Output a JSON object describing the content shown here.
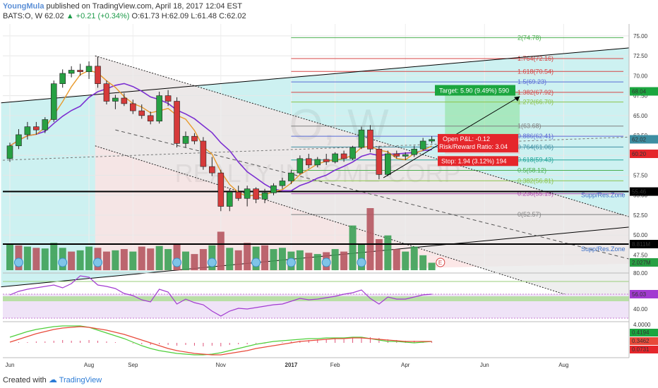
{
  "header": {
    "author": "YoungMula",
    "published": "published on TradingView.com, April 18, 2017 12:04 EST",
    "symbol": "BATS:O, W",
    "last": "62.02",
    "change": "+0.21 (+0.34%)",
    "ohlc": "O:61.73 H:62.09 L:61.48 C:62.02"
  },
  "footer": {
    "created_with": "Created with",
    "brand": "TradingView"
  },
  "watermark": {
    "big": "O, W",
    "sub": "REALTY INCOME CORP"
  },
  "colors": {
    "up": "#27a043",
    "down": "#d63a3a",
    "up_vol": "#3da157",
    "down_vol": "#b65660",
    "channel_fill": "#c8f0f0",
    "fib_fill": "#e8e8e8",
    "target": "#1ba63f",
    "stop": "#e5262b"
  },
  "chart_data": {
    "type": "candlestick",
    "x_ticks": [
      "Jun",
      "Aug",
      "Sep",
      "Nov",
      "2017",
      "Feb",
      "Apr",
      "Jun",
      "Aug"
    ],
    "y_ticks": [
      "75.00",
      "72.50",
      "70.00",
      "67.50",
      "65.00",
      "62.50",
      "60.00",
      "57.50",
      "55.00",
      "52.50",
      "50.00",
      "47.50"
    ],
    "ylim": [
      45.5,
      76.5
    ],
    "price_labels": [
      {
        "value": 68.04,
        "text": "68.04",
        "color": "#1ba63f"
      },
      {
        "value": 62.02,
        "text": "62.02",
        "color": "#3d8ea2"
      },
      {
        "value": 60.2,
        "text": "60.20",
        "color": "#e5262b"
      },
      {
        "value": 55.46,
        "text": "55.46",
        "color": "#000000"
      }
    ],
    "candles": [
      [
        59.6,
        61.6,
        59.2,
        61.2
      ],
      [
        61.2,
        63.3,
        60.8,
        62.6
      ],
      [
        62.6,
        64.2,
        62.0,
        63.6
      ],
      [
        63.6,
        64.2,
        62.6,
        63.2
      ],
      [
        63.2,
        64.8,
        62.8,
        64.5
      ],
      [
        64.5,
        69.4,
        64.2,
        69.0
      ],
      [
        69.0,
        70.8,
        68.5,
        70.3
      ],
      [
        70.3,
        71.2,
        69.8,
        70.7
      ],
      [
        70.7,
        71.5,
        70.0,
        70.5
      ],
      [
        70.5,
        71.8,
        69.6,
        71.2
      ],
      [
        71.2,
        72.4,
        68.5,
        69.0
      ],
      [
        69.0,
        69.4,
        66.4,
        66.8
      ],
      [
        66.8,
        67.6,
        65.8,
        67.2
      ],
      [
        67.2,
        67.8,
        66.2,
        66.5
      ],
      [
        66.5,
        67.0,
        65.2,
        65.6
      ],
      [
        65.6,
        66.4,
        64.6,
        65.0
      ],
      [
        65.0,
        65.5,
        63.9,
        64.3
      ],
      [
        64.3,
        68.0,
        64.0,
        67.5
      ],
      [
        67.5,
        68.2,
        66.2,
        66.8
      ],
      [
        66.8,
        67.3,
        61.0,
        61.5
      ],
      [
        61.5,
        63.0,
        61.0,
        62.4
      ],
      [
        62.4,
        62.8,
        61.4,
        61.8
      ],
      [
        61.8,
        62.3,
        58.2,
        58.6
      ],
      [
        58.6,
        59.8,
        57.4,
        57.8
      ],
      [
        57.8,
        58.2,
        53.0,
        53.6
      ],
      [
        53.6,
        55.8,
        53.0,
        55.4
      ],
      [
        55.4,
        56.2,
        54.3,
        54.6
      ],
      [
        54.6,
        56.2,
        53.6,
        55.8
      ],
      [
        55.8,
        56.0,
        54.0,
        54.5
      ],
      [
        54.5,
        55.8,
        54.0,
        55.3
      ],
      [
        55.3,
        56.5,
        55.0,
        56.2
      ],
      [
        56.2,
        57.2,
        55.8,
        56.8
      ],
      [
        56.8,
        58.2,
        56.4,
        57.8
      ],
      [
        57.8,
        60.0,
        57.6,
        59.6
      ],
      [
        59.6,
        60.2,
        58.4,
        58.8
      ],
      [
        58.8,
        59.8,
        58.5,
        59.5
      ],
      [
        59.5,
        60.2,
        58.8,
        59.2
      ],
      [
        59.2,
        60.4,
        59.0,
        60.2
      ],
      [
        60.2,
        60.6,
        59.2,
        59.6
      ],
      [
        59.6,
        61.2,
        59.4,
        61.0
      ],
      [
        61.0,
        63.6,
        60.8,
        63.2
      ],
      [
        63.2,
        63.8,
        60.4,
        60.8
      ],
      [
        60.8,
        61.2,
        57.0,
        57.6
      ],
      [
        57.6,
        60.6,
        57.4,
        60.2
      ],
      [
        60.2,
        60.6,
        59.6,
        59.9
      ],
      [
        59.9,
        60.4,
        59.4,
        60.1
      ],
      [
        60.1,
        61.2,
        59.8,
        60.8
      ],
      [
        60.8,
        62.2,
        60.6,
        61.8
      ],
      [
        61.8,
        62.4,
        61.5,
        62.0
      ]
    ],
    "volumes": [
      [
        4.2,
        1
      ],
      [
        4.0,
        0
      ],
      [
        3.8,
        1
      ],
      [
        3.6,
        0
      ],
      [
        3.5,
        1
      ],
      [
        4.4,
        1
      ],
      [
        3.6,
        1
      ],
      [
        3.0,
        0
      ],
      [
        3.2,
        1
      ],
      [
        3.8,
        1
      ],
      [
        3.6,
        0
      ],
      [
        3.0,
        0
      ],
      [
        3.2,
        1
      ],
      [
        3.4,
        0
      ],
      [
        3.0,
        1
      ],
      [
        3.8,
        0
      ],
      [
        3.5,
        0
      ],
      [
        3.9,
        1
      ],
      [
        3.4,
        1
      ],
      [
        4.2,
        0
      ],
      [
        3.0,
        1
      ],
      [
        2.6,
        0
      ],
      [
        3.4,
        0
      ],
      [
        4.0,
        1
      ],
      [
        6.2,
        0
      ],
      [
        3.6,
        1
      ],
      [
        3.2,
        0
      ],
      [
        4.4,
        0
      ],
      [
        3.8,
        1
      ],
      [
        4.0,
        0
      ],
      [
        3.4,
        1
      ],
      [
        3.6,
        1
      ],
      [
        3.0,
        1
      ],
      [
        3.2,
        1
      ],
      [
        2.8,
        0
      ],
      [
        2.6,
        1
      ],
      [
        2.9,
        0
      ],
      [
        3.4,
        1
      ],
      [
        3.0,
        0
      ],
      [
        7.2,
        1
      ],
      [
        4.2,
        1
      ],
      [
        10.0,
        0
      ],
      [
        5.0,
        0
      ],
      [
        5.6,
        1
      ],
      [
        3.4,
        0
      ],
      [
        3.0,
        1
      ],
      [
        3.8,
        1
      ],
      [
        2.4,
        1
      ],
      [
        1.2,
        1
      ]
    ],
    "volume_labels": [
      {
        "text": "8.811M",
        "color": "#000000"
      },
      {
        "text": "2.027M",
        "color": "#27a043"
      }
    ],
    "channel_label": "Supp/Res.Zone",
    "fib_levels": [
      {
        "text": "2(74.78)",
        "value": 74.78,
        "color": "#4caf50"
      },
      {
        "text": "1.764(72.16)",
        "value": 72.16,
        "color": "#d64545"
      },
      {
        "text": "1.618(70.54)",
        "value": 70.54,
        "color": "#d64545"
      },
      {
        "text": "1.5(69.23)",
        "value": 69.23,
        "color": "#5a6bd6"
      },
      {
        "text": "1.382(67.92)",
        "value": 67.92,
        "color": "#d64545"
      },
      {
        "text": "1.272(66.70)",
        "value": 66.7,
        "color": "#8bc34a"
      },
      {
        "text": "1(63.68)",
        "value": 63.68,
        "color": "#808080"
      },
      {
        "text": "0.886(62.41)",
        "value": 62.41,
        "color": "#5a6bd6"
      },
      {
        "text": "0.764(61.06)",
        "value": 61.06,
        "color": "#3d8ea2"
      },
      {
        "text": "0.618(59.43)",
        "value": 59.43,
        "color": "#26a69a"
      },
      {
        "text": "0.5(58.12)",
        "value": 58.12,
        "color": "#4caf50"
      },
      {
        "text": "0.382(56.81)",
        "value": 56.81,
        "color": "#8bc34a"
      },
      {
        "text": "0.236(55.19)",
        "value": 55.19,
        "color": "#b04cb0"
      },
      {
        "text": "0(52.57)",
        "value": 52.57,
        "color": "#808080"
      }
    ],
    "position": {
      "target": "Target: 5.90 (9.49%) 590",
      "target_value": 68.04,
      "open_pl": "Open P&L: -0.12",
      "risk_reward": "Risk/Reward Ratio: 3.04",
      "stop": "Stop: 1.94 (3.12%) 194",
      "stop_value": 60.2,
      "entry_value": 62.14
    },
    "rsi": {
      "ticks": [
        "80.00",
        "40.00"
      ],
      "current": "56.03"
    },
    "macd": {
      "ticks": [
        "4.0000"
      ],
      "labels": [
        "0.4194",
        "0.3462",
        "0.0731"
      ]
    }
  }
}
